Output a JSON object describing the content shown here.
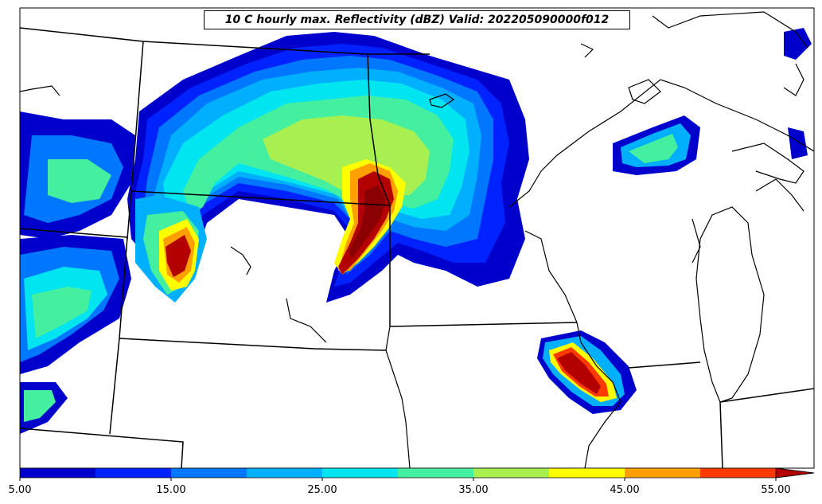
{
  "title": "10 C hourly max. Reflectivity (dBZ) Valid: 202205090000f012",
  "colorbar": {
    "tick_labels": [
      "5.00",
      "15.00",
      "25.00",
      "35.00",
      "45.00",
      "55.00"
    ],
    "levels": [
      5,
      10,
      15,
      20,
      25,
      30,
      35,
      40,
      45,
      50,
      55
    ],
    "colors": [
      "#0000cd",
      "#0022ff",
      "#0077ff",
      "#00b0ff",
      "#00e5f0",
      "#44f0a0",
      "#a8f050",
      "#ffff00",
      "#ff9f00",
      "#ff3a00",
      "#b30000"
    ],
    "extend": "max"
  },
  "palette": {
    "l1": "#0000cd",
    "l2": "#0022ff",
    "l3": "#0077ff",
    "l4": "#00b0ff",
    "l5": "#00e5f0",
    "l6": "#44f0a0",
    "l7": "#a8f050",
    "l8": "#ffff00",
    "l9": "#ff9f00",
    "l10": "#ff3a00",
    "l11": "#b30000",
    "l12": "#8b0000"
  }
}
